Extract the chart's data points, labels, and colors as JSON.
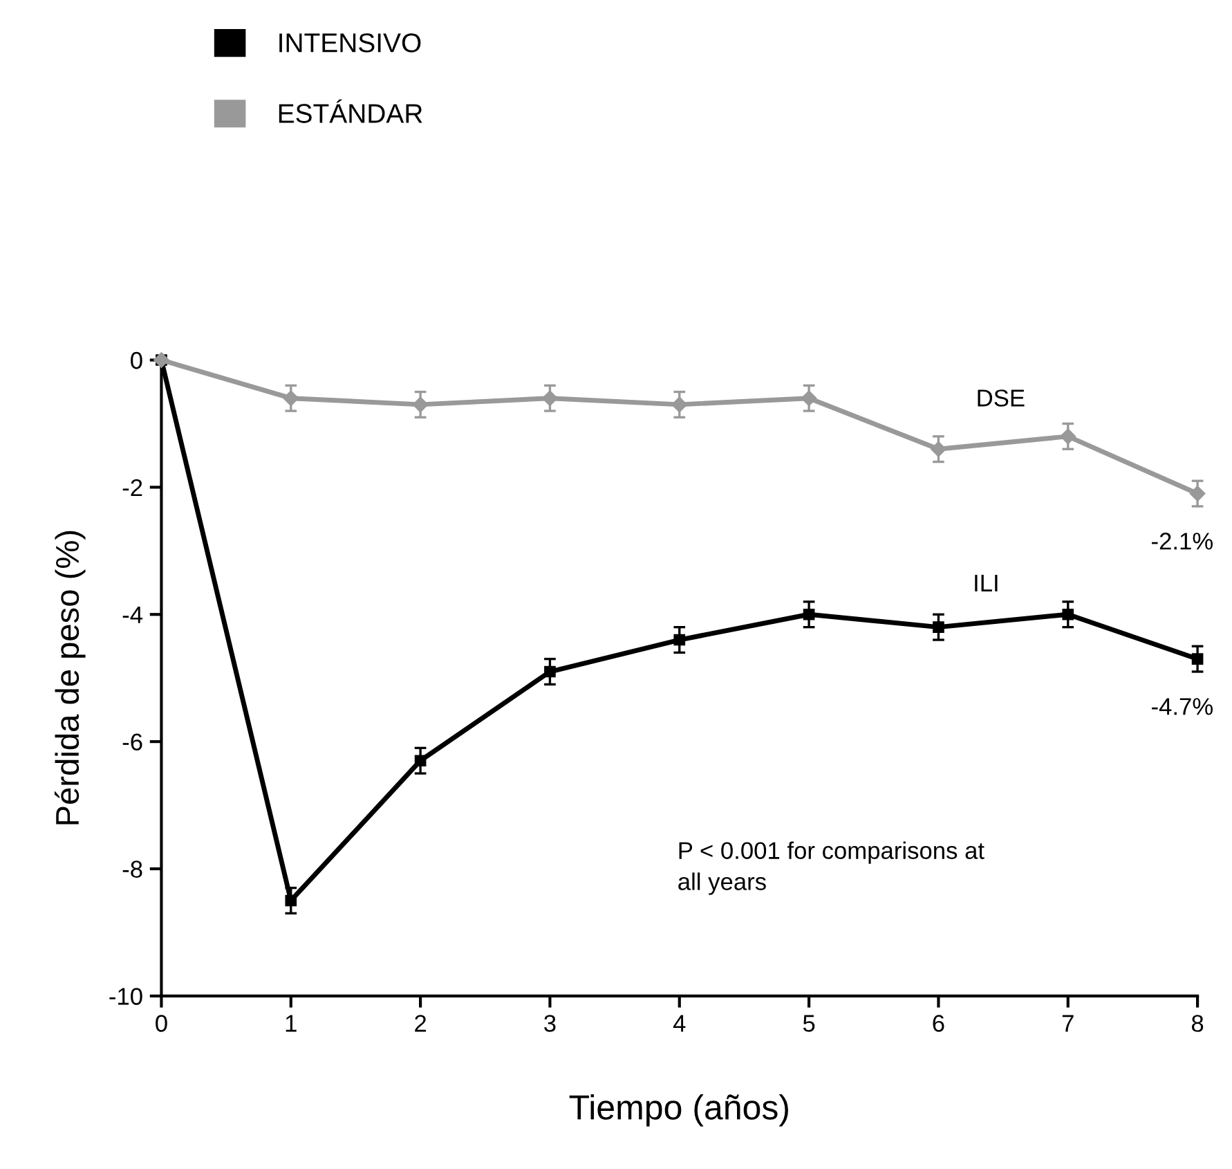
{
  "chart_data": {
    "type": "line",
    "xlabel": "Tiempo (años)",
    "ylabel": "Pérdida de peso (%)",
    "x": [
      0,
      1,
      2,
      3,
      4,
      5,
      6,
      7,
      8
    ],
    "series": [
      {
        "name": "INTENSIVO",
        "color": "#000000",
        "marker": "square",
        "values": [
          0,
          -8.5,
          -6.3,
          -4.9,
          -4.4,
          -4.0,
          -4.2,
          -4.0,
          -4.7
        ],
        "errors": [
          null,
          0.2,
          0.2,
          0.2,
          0.2,
          0.2,
          0.2,
          0.2,
          0.2
        ]
      },
      {
        "name": "ESTÁNDAR",
        "color": "#999999",
        "marker": "diamond",
        "values": [
          0,
          -0.6,
          -0.7,
          -0.6,
          -0.7,
          -0.6,
          -1.4,
          -1.2,
          -2.1
        ],
        "errors": [
          null,
          0.2,
          0.2,
          0.2,
          0.2,
          0.2,
          0.2,
          0.2,
          0.2
        ]
      }
    ],
    "xlim": [
      0,
      8
    ],
    "xticks": [
      0,
      1,
      2,
      3,
      4,
      5,
      6,
      7,
      8
    ],
    "ylim": [
      -10,
      0
    ],
    "yticks": [
      -10,
      -8,
      -6,
      -4,
      -2,
      0
    ],
    "grid": false,
    "legend": "top left",
    "annotations": [
      "DSE",
      "ILI",
      {
        "text": "-2.1%",
        "x": 8,
        "y": -2.1
      },
      {
        "text": "-4.7%",
        "x": 8,
        "y": -4.7
      },
      "P < 0.001 for comparisons at\nall years"
    ]
  }
}
